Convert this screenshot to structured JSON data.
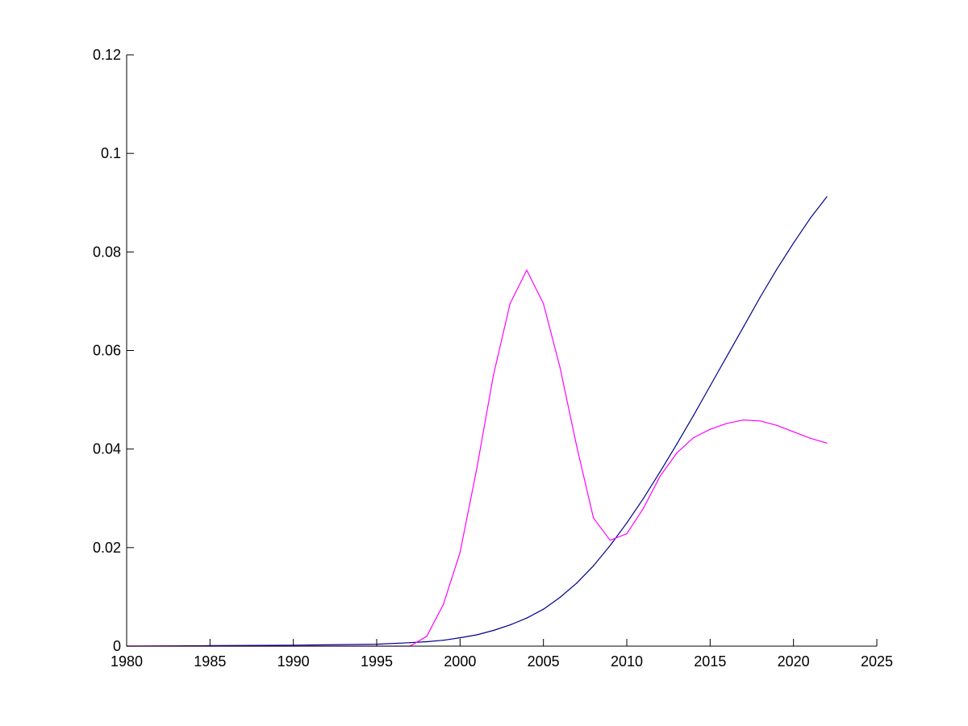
{
  "chart_data": {
    "type": "line",
    "title": "",
    "xlabel": "",
    "ylabel": "",
    "xlim": [
      1980,
      2025
    ],
    "ylim": [
      0,
      0.12
    ],
    "grid": false,
    "legend": "none",
    "x_ticks": [
      "1980",
      "1985",
      "1990",
      "1995",
      "2000",
      "2005",
      "2010",
      "2015",
      "2020",
      "2025"
    ],
    "y_ticks": [
      "0",
      "0.02",
      "0.04",
      "0.06",
      "0.08",
      "0.1",
      "0.12"
    ],
    "x_tick_values": [
      1980,
      1985,
      1990,
      1995,
      2000,
      2005,
      2010,
      2015,
      2020,
      2025
    ],
    "y_tick_values": [
      0,
      0.02,
      0.04,
      0.06,
      0.08,
      0.1,
      0.12
    ],
    "series": [
      {
        "color": "#00008b",
        "x": [
          1980,
          1985,
          1990,
          1995,
          1997,
          1998,
          1999,
          2000,
          2001,
          2002,
          2003,
          2004,
          2005,
          2006,
          2007,
          2008,
          2009,
          2010,
          2011,
          2012,
          2013,
          2014,
          2015,
          2016,
          2017,
          2018,
          2019,
          2020,
          2021,
          2022
        ],
        "y": [
          0,
          0.0001,
          0.0002,
          0.0004,
          0.0007,
          0.0009,
          0.0012,
          0.0017,
          0.0023,
          0.0032,
          0.0043,
          0.0057,
          0.0075,
          0.0099,
          0.0128,
          0.0163,
          0.0204,
          0.025,
          0.03,
          0.0354,
          0.041,
          0.0468,
          0.0528,
          0.0588,
          0.0648,
          0.0708,
          0.0765,
          0.0818,
          0.0868,
          0.0912
        ]
      },
      {
        "color": "#ff00ff",
        "x": [
          1980,
          1985,
          1990,
          1995,
          1997,
          1998,
          1999,
          2000,
          2001,
          2002,
          2003,
          2004,
          2005,
          2006,
          2007,
          2008,
          2009,
          2010,
          2011,
          2012,
          2013,
          2014,
          2015,
          2016,
          2017,
          2018,
          2019,
          2020,
          2021,
          2022
        ],
        "y": [
          0,
          0,
          0,
          0,
          0,
          0.002,
          0.0085,
          0.019,
          0.036,
          0.055,
          0.0695,
          0.0763,
          0.0695,
          0.0565,
          0.0405,
          0.026,
          0.0215,
          0.0228,
          0.028,
          0.0345,
          0.0392,
          0.0423,
          0.044,
          0.0452,
          0.0459,
          0.0457,
          0.0448,
          0.0435,
          0.0422,
          0.0412
        ]
      }
    ]
  }
}
